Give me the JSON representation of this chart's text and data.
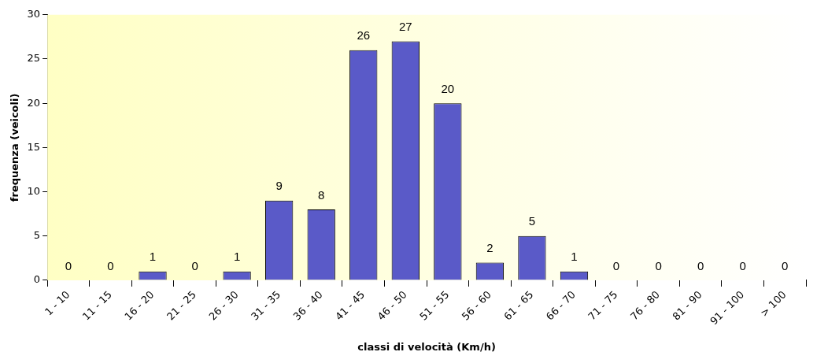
{
  "chart_data": {
    "type": "bar",
    "xlabel": "classi di velocità (Km/h)",
    "ylabel": "frequenza (veicoli)",
    "categories": [
      "1 - 10",
      "11 - 15",
      "16 - 20",
      "21 - 25",
      "26 - 30",
      "31 - 35",
      "36 - 40",
      "41 - 45",
      "46 - 50",
      "51 - 55",
      "56 - 60",
      "61 - 65",
      "66 - 70",
      "71 - 75",
      "76 - 80",
      "81 - 90",
      "91 - 100",
      "> 100"
    ],
    "values": [
      0,
      0,
      1,
      0,
      1,
      9,
      8,
      26,
      27,
      20,
      2,
      5,
      1,
      0,
      0,
      0,
      0,
      0
    ],
    "color": "#5a5ac8",
    "ylim": [
      0,
      30
    ],
    "yticks": [
      0,
      5,
      10,
      15,
      20,
      25,
      30
    ],
    "data_labels": true,
    "legend": false
  }
}
